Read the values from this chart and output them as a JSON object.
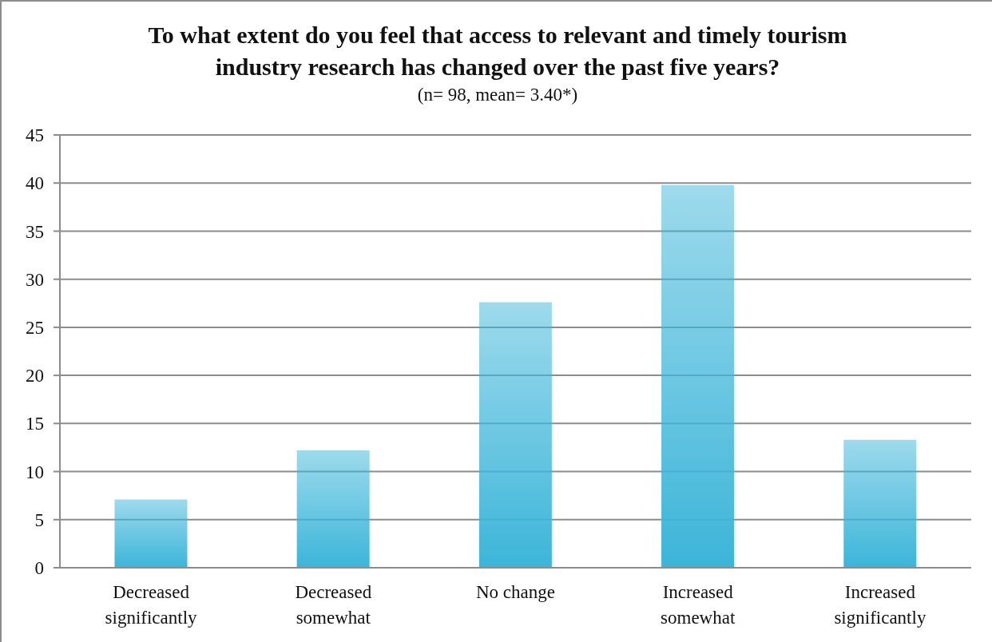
{
  "chart_data": {
    "type": "bar",
    "title": "To what extent do you feel that access to relevant and timely tourism industry research has changed over the past five years?",
    "subtitle": "(n= 98, mean= 3.40*)",
    "categories": [
      "Decreased significantly",
      "Decreased somewhat",
      "No change",
      "Increased somewhat",
      "Increased significantly"
    ],
    "values": [
      7.1,
      12.2,
      27.6,
      39.8,
      13.3
    ],
    "color": "#3cb5d9",
    "ylim": [
      0,
      45
    ],
    "yticks": [
      0,
      5,
      10,
      15,
      20,
      25,
      30,
      35,
      40,
      45
    ],
    "grid": "y"
  }
}
